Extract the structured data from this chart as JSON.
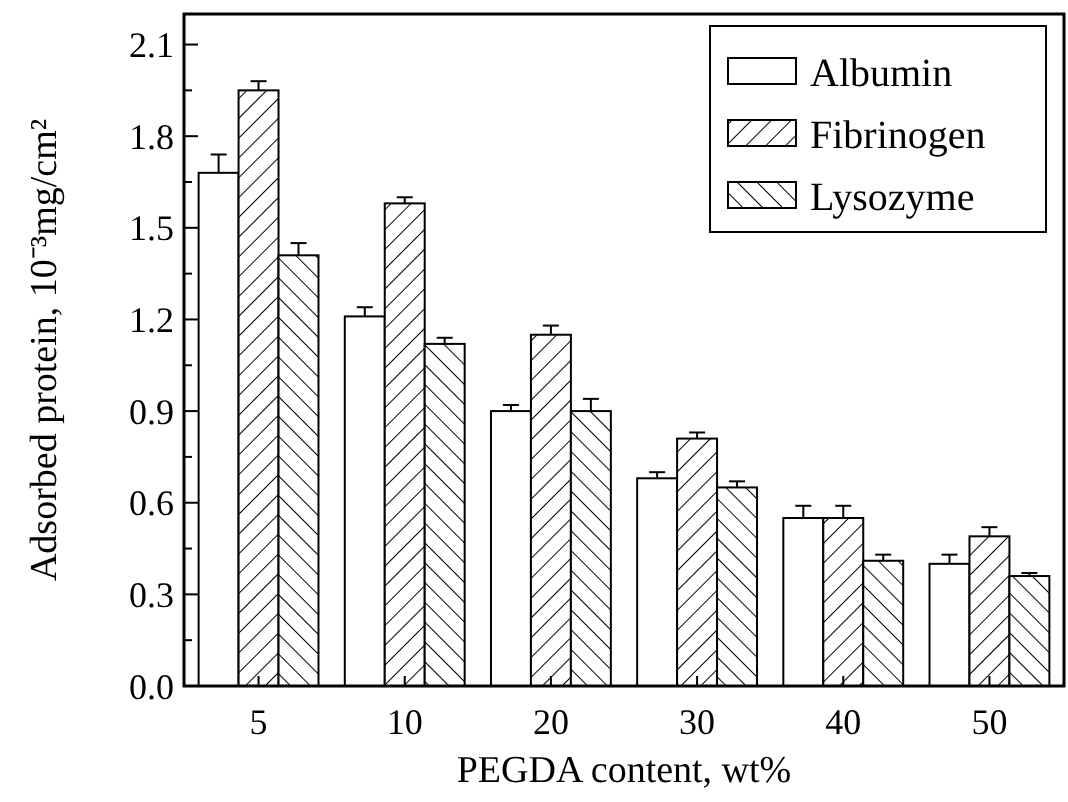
{
  "chart_data": {
    "type": "bar",
    "xlabel": "PEGDA content, wt%",
    "ylabel": "Adsorbed protein,  10⁻³mg/cm²",
    "categories": [
      "5",
      "10",
      "20",
      "30",
      "40",
      "50"
    ],
    "series": [
      {
        "name": "Albumin",
        "color": "#ffffff",
        "values": [
          1.68,
          1.21,
          0.9,
          0.68,
          0.55,
          0.4
        ],
        "errors": [
          0.06,
          0.03,
          0.02,
          0.02,
          0.04,
          0.03
        ]
      },
      {
        "name": "Fibrinogen",
        "color": "#000000",
        "values": [
          1.95,
          1.58,
          1.15,
          0.81,
          0.55,
          0.49
        ],
        "errors": [
          0.03,
          0.02,
          0.03,
          0.02,
          0.04,
          0.03
        ]
      },
      {
        "name": "Lysozyme",
        "color": "#000000",
        "values": [
          1.41,
          1.12,
          0.9,
          0.65,
          0.41,
          0.36
        ],
        "errors": [
          0.04,
          0.02,
          0.04,
          0.02,
          0.02,
          0.01
        ]
      }
    ],
    "ylim": [
      0,
      2.2
    ],
    "yticks": [
      {
        "value": 0,
        "label": "0.0"
      },
      {
        "value": 0.15,
        "label": null
      },
      0.3,
      {
        "value": 0.45,
        "label": null
      },
      0.6,
      {
        "value": 0.75,
        "label": null
      },
      0.9,
      {
        "value": 1.05,
        "label": null
      },
      1.2,
      {
        "value": 1.35,
        "label": null
      },
      1.5,
      {
        "value": 1.65,
        "label": null
      },
      1.8,
      {
        "value": 1.95,
        "label": null
      },
      2.1
    ],
    "legend": "top right",
    "grid": false
  }
}
